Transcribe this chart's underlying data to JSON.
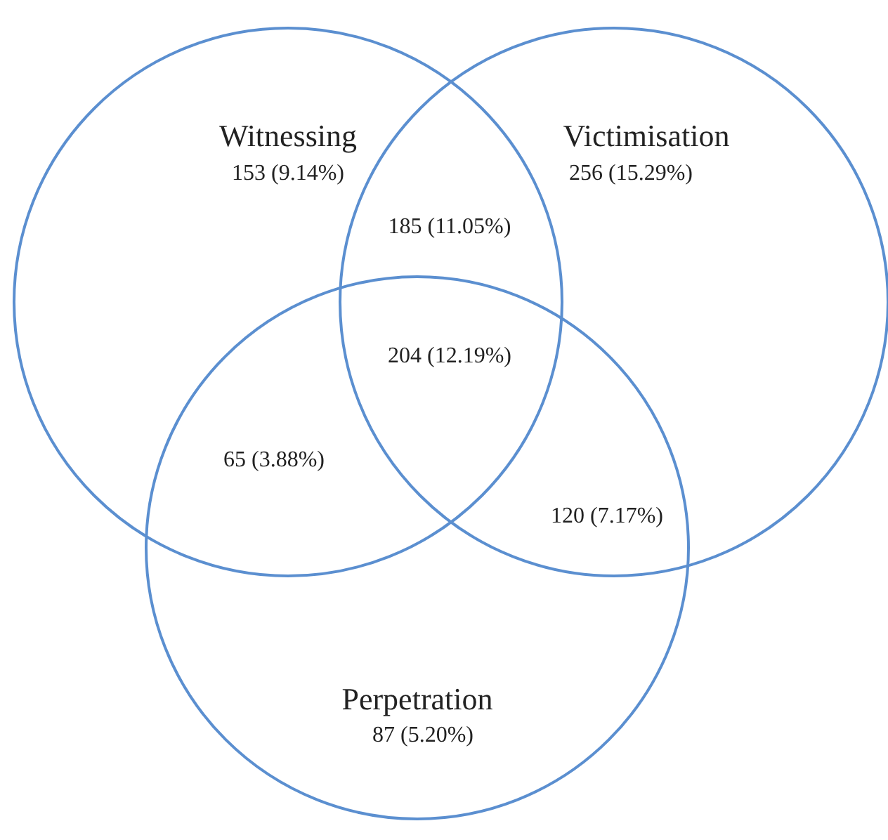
{
  "chart_data": {
    "type": "other",
    "categories": [
      "Witnessing",
      "Victimisation",
      "Perpetration"
    ],
    "values": [
      153,
      256,
      87
    ],
    "data_labels": true,
    "annotations": [
      "(9.14%)",
      "(15.29%)",
      "(5.20%)",
      "185 (11.05%)",
      "204 (12.19%)",
      "65 (3.88%)",
      "120 (7.17%)"
    ],
    "color": "#5b8fd0"
  }
}
